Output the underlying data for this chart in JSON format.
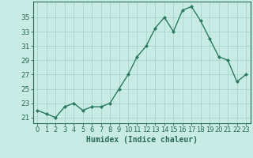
{
  "x": [
    0,
    1,
    2,
    3,
    4,
    5,
    6,
    7,
    8,
    9,
    10,
    11,
    12,
    13,
    14,
    15,
    16,
    17,
    18,
    19,
    20,
    21,
    22,
    23
  ],
  "y": [
    22,
    21.5,
    21,
    22.5,
    23,
    22,
    22.5,
    22.5,
    23,
    25,
    27,
    29.5,
    31,
    33.5,
    35,
    33,
    36,
    36.5,
    34.5,
    32,
    29.5,
    29,
    26,
    27
  ],
  "line_color": "#2a7a62",
  "marker": "D",
  "marker_size": 2.0,
  "bg_color": "#c8ebe5",
  "grid_color": "#a8d5cc",
  "tick_color": "#2a6a55",
  "label_color": "#2a6a55",
  "xlabel": "Humidex (Indice chaleur)",
  "yticks": [
    21,
    23,
    25,
    27,
    29,
    31,
    33,
    35
  ],
  "ylim": [
    20.2,
    37.2
  ],
  "xlim": [
    -0.5,
    23.5
  ],
  "line_width": 1.0,
  "font_size": 6.5,
  "xlabel_fontsize": 7.0
}
